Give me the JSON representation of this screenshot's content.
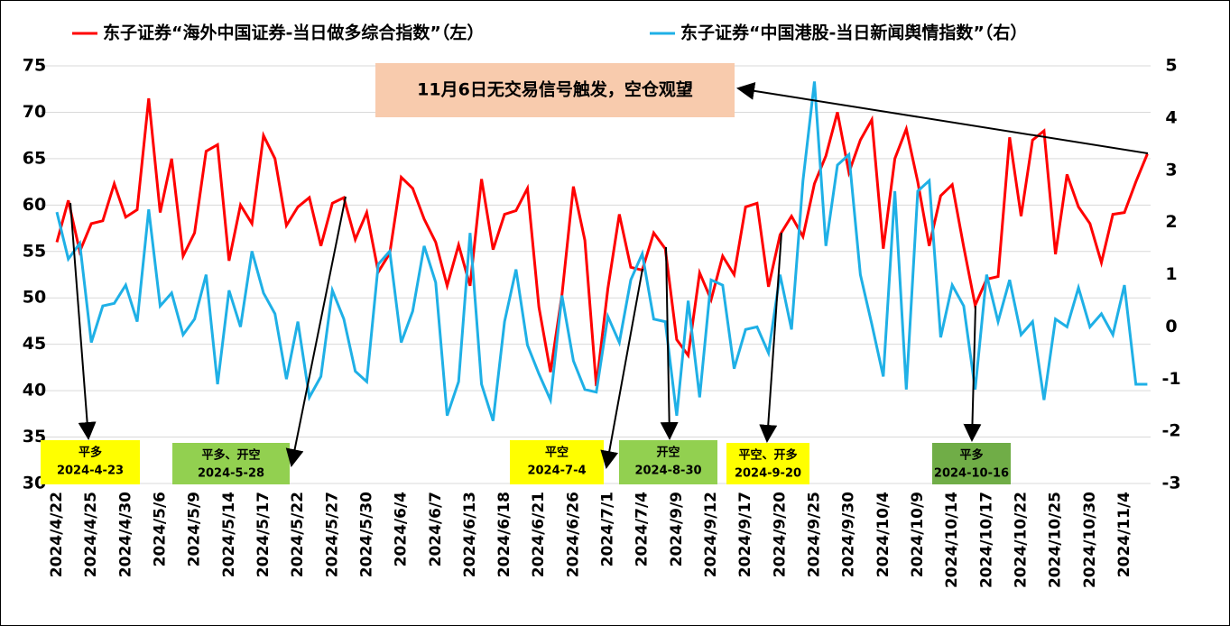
{
  "chart_data": {
    "type": "line",
    "categories": [
      "2024/4/22",
      null,
      null,
      "2024/4/25",
      null,
      null,
      "2024/4/30",
      null,
      null,
      "2024/5/6",
      null,
      null,
      "2024/5/9",
      null,
      null,
      "2024/5/14",
      null,
      null,
      "2024/5/17",
      null,
      null,
      "2024/5/22",
      null,
      null,
      "2024/5/27",
      null,
      null,
      "2024/5/30",
      null,
      null,
      "2024/6/4",
      null,
      null,
      "2024/6/7",
      null,
      null,
      "2024/6/13",
      null,
      null,
      "2024/6/18",
      null,
      null,
      "2024/6/21",
      null,
      null,
      "2024/6/26",
      null,
      null,
      "2024/7/1",
      null,
      null,
      "2024/7/4",
      null,
      null,
      "2024/9/9",
      null,
      null,
      "2024/9/12",
      null,
      null,
      "2024/9/17",
      null,
      null,
      "2024/9/20",
      null,
      null,
      "2024/9/25",
      null,
      null,
      "2024/9/30",
      null,
      null,
      "2024/10/4",
      null,
      null,
      "2024/10/9",
      null,
      null,
      "2024/10/14",
      null,
      null,
      "2024/10/17",
      null,
      null,
      "2024/10/22",
      null,
      null,
      "2024/10/25",
      null,
      null,
      "2024/10/30",
      null,
      null,
      "2024/11/4",
      null,
      null
    ],
    "series": [
      {
        "name": "东子证券“海外中国证券-当日做多综合指数”（左）",
        "color": "#ff0000",
        "axis": "y",
        "values": [
          56,
          60.5,
          55,
          58,
          58.3,
          62.3,
          58.7,
          59.5,
          71.5,
          59.2,
          65,
          54.5,
          57,
          65.8,
          66.5,
          54,
          60,
          58,
          67.5,
          65,
          57.8,
          59.8,
          60.8,
          55.6,
          60.2,
          60.8,
          56.3,
          59.2,
          52.8,
          54.8,
          63,
          61.8,
          58.5,
          56,
          51.3,
          55.7,
          51.3,
          62.8,
          55.2,
          59,
          59.4,
          61.8,
          49,
          42,
          50.3,
          62,
          56.2,
          40.5,
          51,
          59,
          53.3,
          53,
          57,
          55.3,
          45.5,
          43.8,
          52.7,
          49.8,
          54.5,
          52.5,
          59.8,
          60.2,
          51.2,
          56.8,
          58.8,
          56.6,
          62.3,
          65.3,
          70,
          63.5,
          67,
          69.2,
          55.3,
          65,
          68.2,
          62.5,
          55.6,
          61,
          62.2,
          55.5,
          49.2,
          52,
          52.3,
          67.3,
          58.8,
          67,
          68,
          54.7,
          63.3,
          59.8,
          58,
          53.8,
          59,
          59.2,
          62.5,
          65.5
        ]
      },
      {
        "name": "东子证券“中国港股-当日新闻舆情指数”（右）",
        "color": "#1fb0e6",
        "axis": "y2",
        "values": [
          2.2,
          1.3,
          1.6,
          -0.3,
          0.4,
          0.45,
          0.8,
          0.1,
          2.25,
          0.4,
          0.65,
          -0.15,
          0.15,
          1.0,
          -1.1,
          0.7,
          0.0,
          1.45,
          0.65,
          0.25,
          -1.0,
          0.1,
          -1.35,
          -0.95,
          0.7,
          0.15,
          -0.85,
          -1.05,
          1.2,
          1.45,
          -0.3,
          0.3,
          1.55,
          0.85,
          -1.7,
          -1.05,
          1.8,
          -1.1,
          -1.8,
          0.1,
          1.1,
          -0.35,
          -0.9,
          -1.4,
          0.6,
          -0.65,
          -1.2,
          -1.25,
          0.2,
          -0.3,
          0.9,
          1.4,
          0.15,
          0.1,
          -1.7,
          0.5,
          -1.35,
          0.9,
          0.8,
          -0.8,
          -0.05,
          0.0,
          -0.5,
          1.0,
          -0.05,
          2.8,
          4.7,
          1.55,
          3.1,
          3.3,
          1.0,
          0.05,
          -0.95,
          2.6,
          -1.2,
          2.6,
          2.8,
          -0.2,
          0.8,
          0.4,
          -1.2,
          1.0,
          0.1,
          0.9,
          -0.15,
          0.1,
          -1.4,
          0.15,
          0.0,
          0.75,
          0.0,
          0.25,
          -0.15,
          0.8,
          -1.1,
          -1.1
        ]
      }
    ],
    "ylim": [
      30,
      75
    ],
    "yticks": [
      30,
      35,
      40,
      45,
      50,
      55,
      60,
      65,
      70,
      75
    ],
    "y2lim": [
      -3,
      5
    ],
    "y2ticks": [
      -3,
      -2,
      -1,
      0,
      1,
      2,
      3,
      4,
      5
    ],
    "grid": true,
    "note": "11月6日无交易信号触发，空仓观望",
    "annotations": [
      {
        "text": "平多",
        "date": "2024-4-23",
        "color": "#ffff00"
      },
      {
        "text": "平多、开空",
        "date": "2024-5-28",
        "color": "#92d050"
      },
      {
        "text": "平空",
        "date": "2024-7-4",
        "color": "#ffff00"
      },
      {
        "text": "开空",
        "date": "2024-8-30",
        "color": "#92d050"
      },
      {
        "text": "平空、开多",
        "date": "2024-9-20",
        "color": "#ffff00"
      },
      {
        "text": "平多",
        "date": "2024-10-16",
        "color": "#70ad47"
      }
    ]
  }
}
